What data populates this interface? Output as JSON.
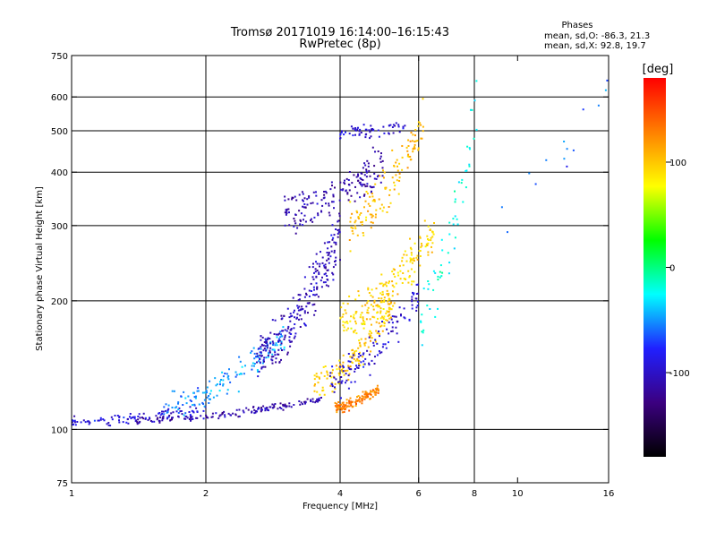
{
  "chart_data": {
    "type": "scatter",
    "title": "Tromsø 20171019 16:14:00–16:15:43",
    "subtitle": "RwPretec (8p)",
    "stats_heading": "Phases",
    "stats_line1": "mean, sd,O: -86.3, 21.3",
    "stats_line2": "mean, sd,X:  92.8, 19.7",
    "xlabel": "Frequency [MHz]",
    "ylabel": "Stationary phase Virtual Height [km]",
    "x_scale": "log",
    "y_scale": "log",
    "xlim": [
      1,
      16
    ],
    "ylim": [
      75,
      750
    ],
    "x_ticks": [
      1,
      2,
      4,
      6,
      8,
      10,
      16
    ],
    "x_tick_labels": [
      "1",
      "2",
      "4",
      "6",
      "8",
      "10",
      "16"
    ],
    "x_grid": [
      2,
      4,
      6,
      8
    ],
    "y_ticks": [
      75,
      100,
      200,
      300,
      400,
      500,
      600,
      750
    ],
    "y_tick_labels": [
      "75",
      "100",
      "200",
      "300",
      "400",
      "500",
      "600",
      "750"
    ],
    "y_grid": [
      100,
      200,
      300,
      400,
      500,
      600
    ],
    "grid": true,
    "colorbar": {
      "label": "[deg]",
      "min": -180,
      "max": 180,
      "ticks": [
        100,
        0,
        -100
      ],
      "tick_labels": [
        "100",
        "0",
        "-100"
      ],
      "colors": [
        "#000000",
        "#3b0080",
        "#2020ff",
        "#00ffff",
        "#00ff00",
        "#ffff00",
        "#ff8000",
        "#ff0000"
      ]
    },
    "clusters": [
      {
        "name": "E low trace",
        "x_range": [
          1.0,
          2.0
        ],
        "h_start": 104,
        "h_end": 112,
        "phase": -95,
        "count": 90,
        "spread": 0.018
      },
      {
        "name": "lower O trace",
        "x_range": [
          1.4,
          3.7
        ],
        "h_start": 105,
        "h_end": 118,
        "phase": -110,
        "count": 160,
        "spread": 0.012
      },
      {
        "name": "F rise O",
        "x_range": [
          1.6,
          3.0
        ],
        "h_start": 112,
        "h_end": 165,
        "phase": -50,
        "count": 150,
        "spread": 0.05
      },
      {
        "name": "F O cluster",
        "x_range": [
          2.6,
          4.0
        ],
        "h_start": 150,
        "h_end": 290,
        "phase": -105,
        "count": 260,
        "spread": 0.09
      },
      {
        "name": "X trace orange",
        "x_range": [
          3.9,
          4.9
        ],
        "h_start": 112,
        "h_end": 125,
        "phase": 130,
        "count": 120,
        "spread": 0.02
      },
      {
        "name": "X trace yellow",
        "x_range": [
          3.5,
          5.3
        ],
        "h_start": 128,
        "h_end": 200,
        "phase": 100,
        "count": 160,
        "spread": 0.05
      },
      {
        "name": "X cluster yellow",
        "x_range": [
          4.0,
          6.5
        ],
        "h_start": 180,
        "h_end": 290,
        "phase": 95,
        "count": 200,
        "spread": 0.07
      },
      {
        "name": "mid O blue",
        "x_range": [
          3.8,
          6.0
        ],
        "h_start": 130,
        "h_end": 210,
        "phase": -95,
        "count": 120,
        "spread": 0.06
      },
      {
        "name": "upper blue",
        "x_range": [
          3.0,
          5.0
        ],
        "h_start": 320,
        "h_end": 420,
        "phase": -110,
        "count": 170,
        "spread": 0.07
      },
      {
        "name": "top blue 500",
        "x_range": [
          4.0,
          5.6
        ],
        "h_start": 495,
        "h_end": 510,
        "phase": -95,
        "count": 60,
        "spread": 0.02
      },
      {
        "name": "upper yellow",
        "x_range": [
          4.2,
          6.2
        ],
        "h_start": 300,
        "h_end": 540,
        "phase": 105,
        "count": 130,
        "spread": 0.08
      },
      {
        "name": "far right scattered",
        "x_range": [
          6.0,
          8.2
        ],
        "h_start": 180,
        "h_end": 600,
        "phase": -20,
        "count": 60,
        "spread": 0.12
      },
      {
        "name": "sparse high",
        "x_range": [
          9.0,
          16.0
        ],
        "h_start": 330,
        "h_end": 640,
        "phase": -60,
        "count": 14,
        "spread": 0.1
      }
    ]
  }
}
